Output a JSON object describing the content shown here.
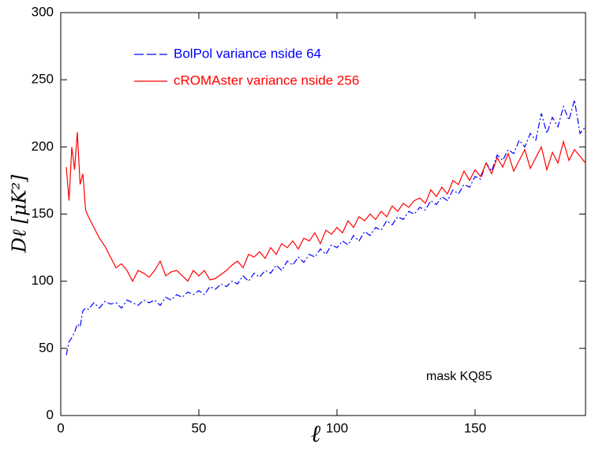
{
  "chart_data": {
    "type": "line",
    "xlabel": "ℓ",
    "ylabel": "Dℓ [μK²]",
    "annotation": "mask KQ85",
    "x": [
      2,
      3,
      4,
      5,
      6,
      7,
      8,
      9,
      10,
      12,
      14,
      16,
      18,
      20,
      22,
      24,
      26,
      28,
      30,
      32,
      34,
      36,
      38,
      40,
      42,
      44,
      46,
      48,
      50,
      52,
      54,
      56,
      58,
      60,
      62,
      64,
      66,
      68,
      70,
      72,
      74,
      76,
      78,
      80,
      82,
      84,
      86,
      88,
      90,
      92,
      94,
      96,
      98,
      100,
      102,
      104,
      106,
      108,
      110,
      112,
      114,
      116,
      118,
      120,
      122,
      124,
      126,
      128,
      130,
      132,
      134,
      136,
      138,
      140,
      142,
      144,
      146,
      148,
      150,
      152,
      154,
      156,
      158,
      160,
      162,
      164,
      166,
      168,
      170,
      172,
      174,
      176,
      178,
      180,
      182,
      184,
      186,
      188,
      190
    ],
    "series": [
      {
        "name": "BolPol variance nside 64",
        "color": "#0000ff",
        "dash": true,
        "values": [
          45,
          55,
          58,
          62,
          68,
          66,
          78,
          80,
          79,
          84,
          80,
          85,
          83,
          84,
          80,
          86,
          84,
          82,
          86,
          84,
          86,
          82,
          88,
          86,
          90,
          88,
          92,
          90,
          93,
          90,
          96,
          94,
          98,
          96,
          100,
          98,
          104,
          100,
          106,
          103,
          108,
          106,
          112,
          108,
          115,
          112,
          118,
          114,
          120,
          118,
          124,
          120,
          127,
          125,
          130,
          127,
          134,
          130,
          137,
          134,
          140,
          138,
          145,
          142,
          148,
          146,
          152,
          150,
          155,
          153,
          160,
          157,
          163,
          160,
          168,
          165,
          172,
          170,
          178,
          176,
          188,
          182,
          194,
          190,
          198,
          195,
          205,
          200,
          210,
          205,
          225,
          210,
          222,
          215,
          230,
          220,
          235,
          210,
          215
        ]
      },
      {
        "name": "cROMAster variance nside 256",
        "color": "#ff0000",
        "dash": false,
        "values": [
          185,
          160,
          200,
          183,
          211,
          172,
          180,
          153,
          148,
          140,
          132,
          126,
          118,
          110,
          113,
          108,
          100,
          108,
          106,
          103,
          108,
          115,
          104,
          107,
          108,
          104,
          100,
          108,
          104,
          108,
          101,
          102,
          105,
          108,
          112,
          115,
          110,
          120,
          118,
          122,
          117,
          125,
          120,
          128,
          125,
          130,
          124,
          132,
          130,
          136,
          128,
          138,
          135,
          140,
          136,
          145,
          140,
          148,
          145,
          150,
          146,
          152,
          148,
          156,
          152,
          158,
          155,
          160,
          162,
          158,
          168,
          163,
          170,
          165,
          175,
          172,
          182,
          175,
          183,
          178,
          188,
          180,
          192,
          185,
          195,
          182,
          190,
          198,
          184,
          192,
          200,
          183,
          196,
          188,
          204,
          190,
          198,
          193,
          188
        ]
      }
    ],
    "xlim": [
      0,
      190
    ],
    "ylim": [
      0,
      300
    ],
    "xticks": [
      0,
      50,
      100,
      150
    ],
    "yticks": [
      0,
      50,
      100,
      150,
      200,
      250,
      300
    ],
    "legend": "upper left"
  }
}
